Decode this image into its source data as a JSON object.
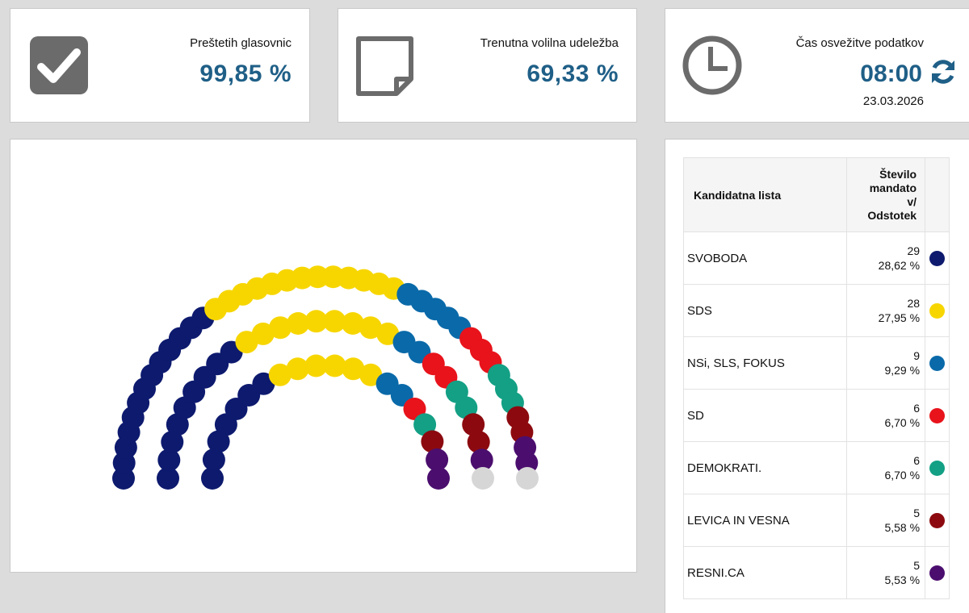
{
  "stats": {
    "counted": {
      "label": "Preštetih glasovnic",
      "value": "99,85 %",
      "icon": "checkbox-icon"
    },
    "turnout": {
      "label": "Trenutna volilna udeležba",
      "value": "69,33 %",
      "icon": "note-icon"
    },
    "refresh": {
      "label": "Čas osvežitve podatkov",
      "time": "08:00",
      "date": "23.03.2026",
      "icon": "clock-icon",
      "action_icon": "refresh-icon"
    }
  },
  "table": {
    "header_party": "Kandidatna lista",
    "header_seats_lines": [
      "Število",
      "mandato",
      "v/",
      "Odstotek"
    ],
    "rows": [
      {
        "party": "SVOBODA",
        "seats": "29",
        "percent": "28,62 %",
        "color": "#0d1a6e"
      },
      {
        "party": "SDS",
        "seats": "28",
        "percent": "27,95 %",
        "color": "#f7d600"
      },
      {
        "party": "NSi, SLS, FOKUS",
        "seats": "9",
        "percent": "9,29 %",
        "color": "#0a6aa9"
      },
      {
        "party": "SD",
        "seats": "6",
        "percent": "6,70 %",
        "color": "#e8131b"
      },
      {
        "party": "DEMOKRATI.",
        "seats": "6",
        "percent": "6,70 %",
        "color": "#13a085"
      },
      {
        "party": "LEVICA IN VESNA",
        "seats": "5",
        "percent": "5,58 %",
        "color": "#8c0a0f"
      },
      {
        "party": "RESNI.CA",
        "seats": "5",
        "percent": "5,53 %",
        "color": "#4b0e6e"
      }
    ]
  },
  "chart_data": {
    "type": "parliament",
    "total_seats": 90,
    "seats": [
      {
        "party": "SVOBODA",
        "count": 29,
        "color": "#0d1a6e"
      },
      {
        "party": "SDS",
        "count": 28,
        "color": "#f7d600"
      },
      {
        "party": "NSi, SLS, FOKUS",
        "count": 9,
        "color": "#0a6aa9"
      },
      {
        "party": "SD",
        "count": 6,
        "color": "#e8131b"
      },
      {
        "party": "DEMOKRATI.",
        "count": 6,
        "color": "#13a085"
      },
      {
        "party": "LEVICA IN VESNA",
        "count": 5,
        "color": "#8c0a0f"
      },
      {
        "party": "RESNI.CA",
        "count": 5,
        "color": "#4b0e6e"
      },
      {
        "party": "",
        "count": 2,
        "color": "#d6d6d6"
      }
    ]
  }
}
